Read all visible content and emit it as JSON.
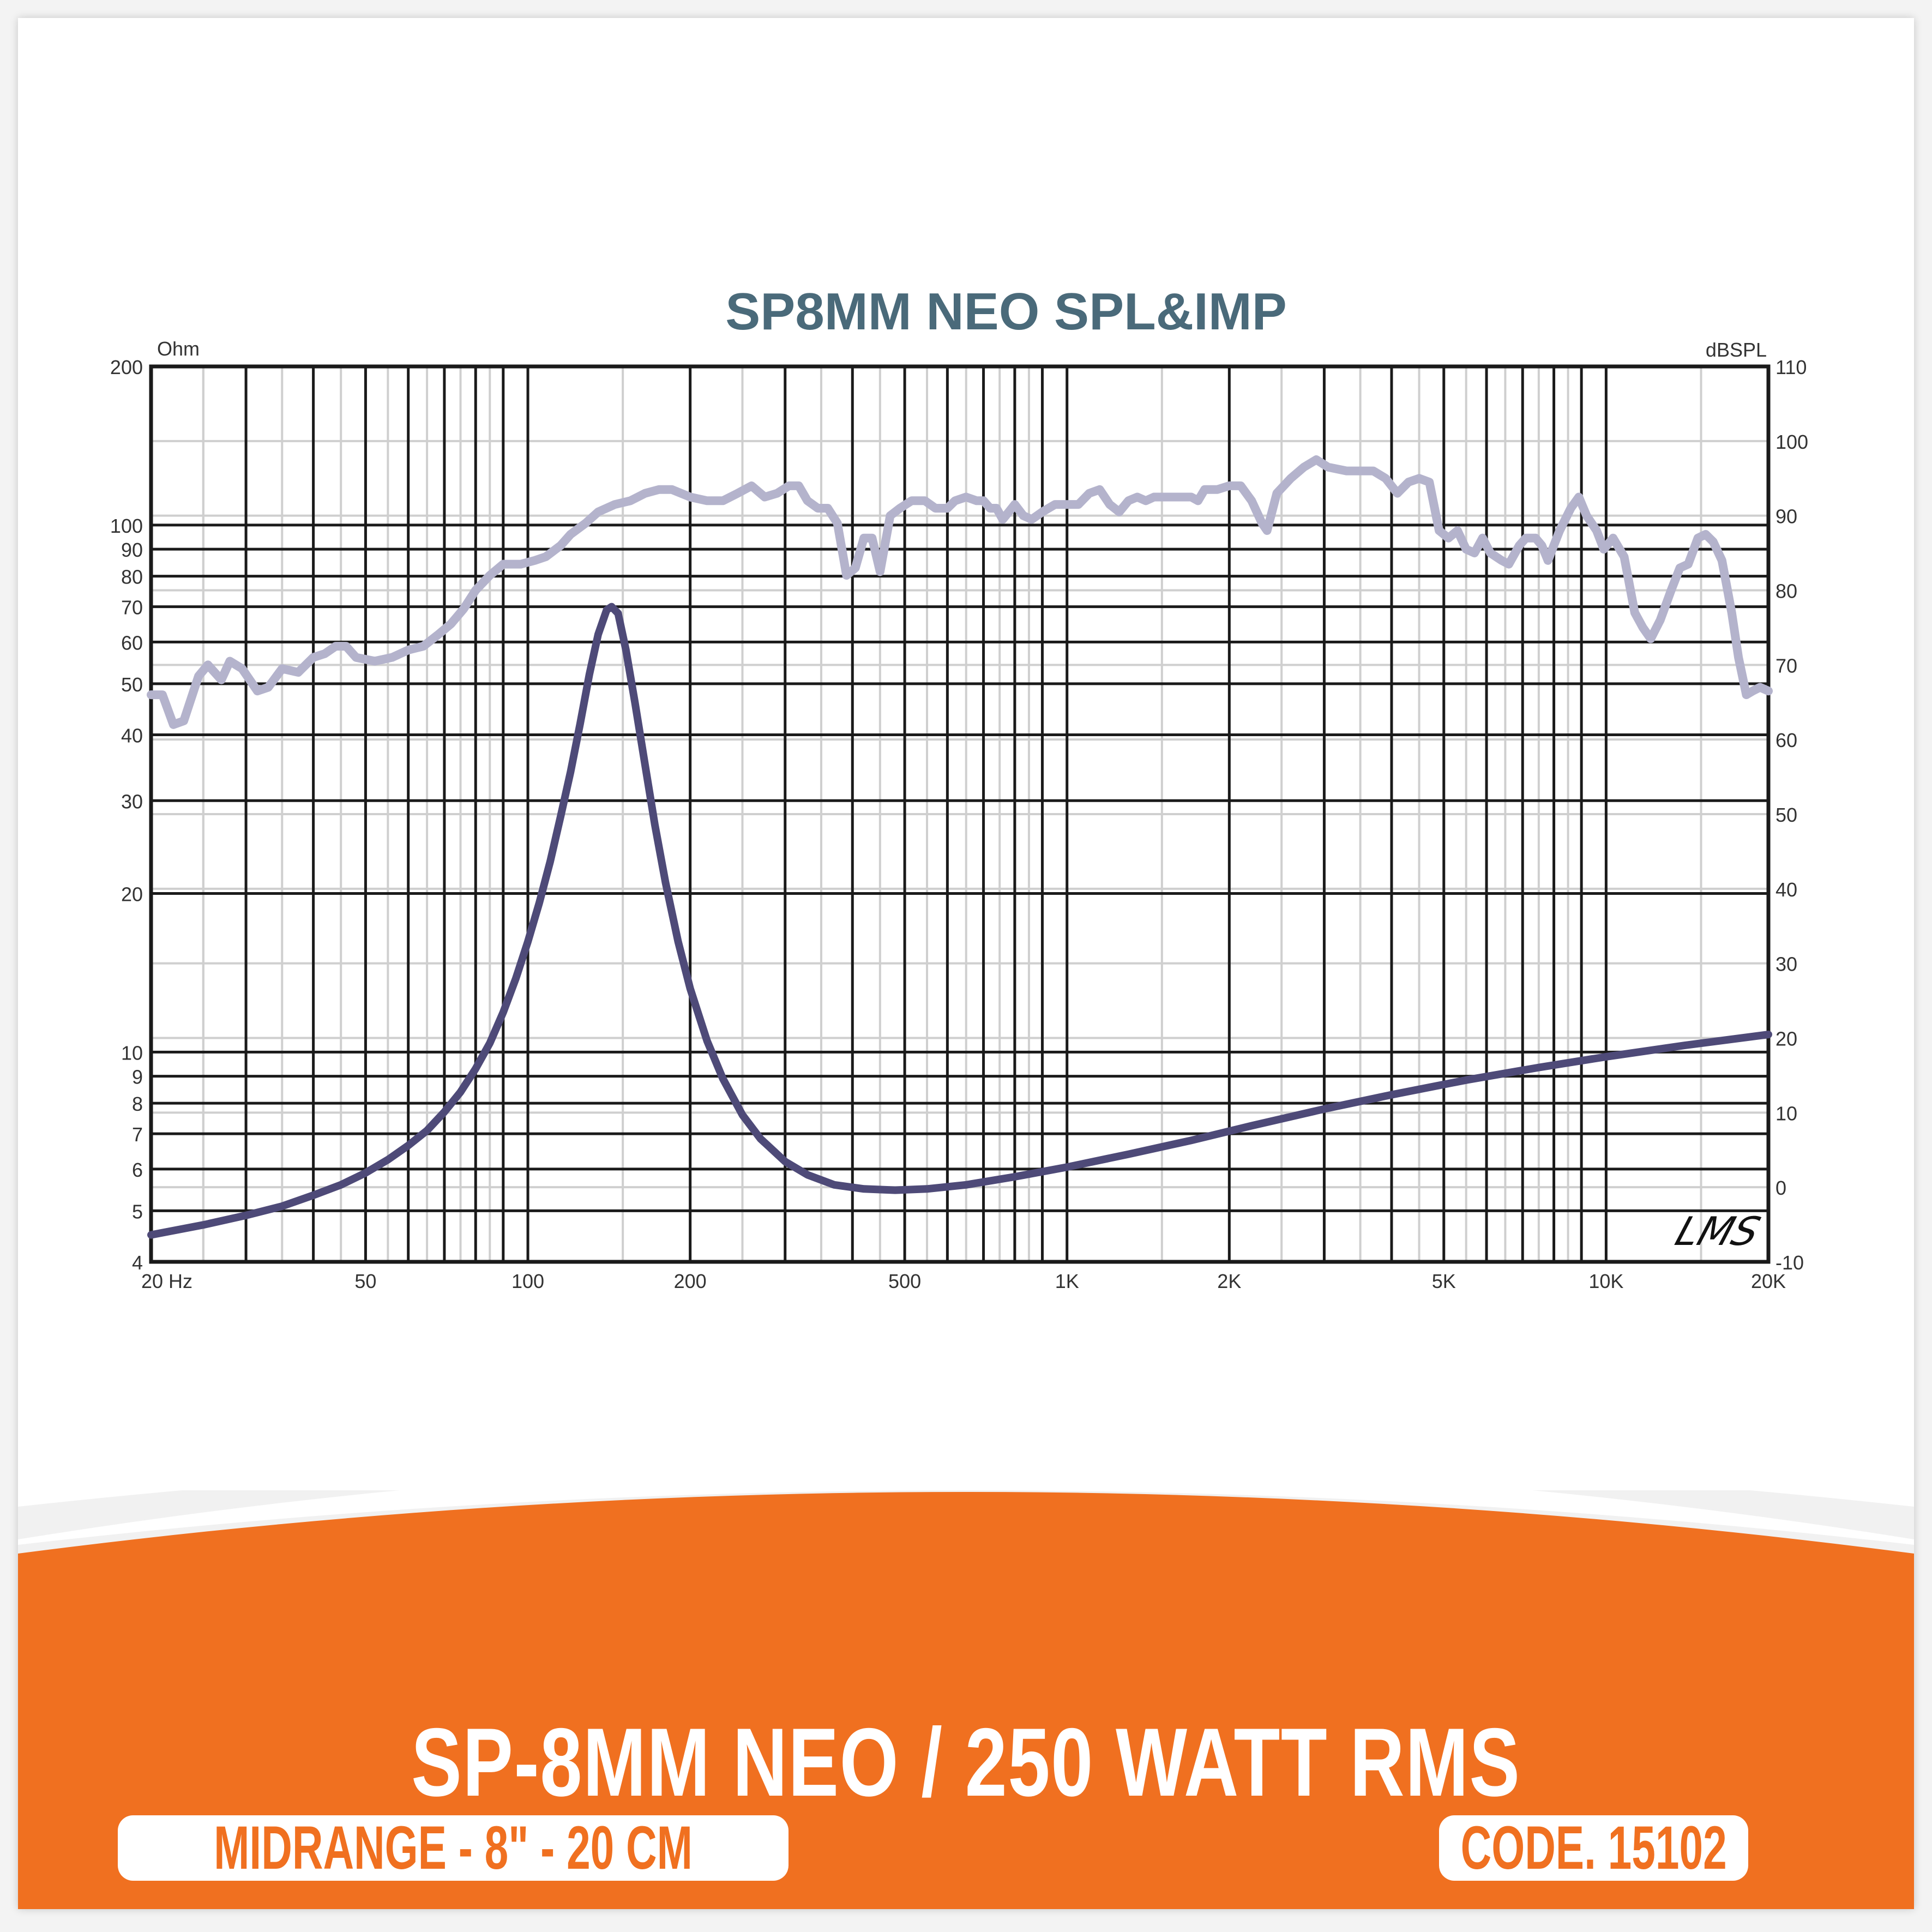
{
  "chart_data": {
    "type": "line",
    "title": "SP8MM NEO SPL&IMP",
    "xlabel": "Hz",
    "x_scale": "log",
    "xlim": [
      20,
      20000
    ],
    "x_ticks": [
      {
        "value": 20,
        "label": "20  Hz"
      },
      {
        "value": 50,
        "label": "50"
      },
      {
        "value": 100,
        "label": "100"
      },
      {
        "value": 200,
        "label": "200"
      },
      {
        "value": 500,
        "label": "500"
      },
      {
        "value": 1000,
        "label": "1K"
      },
      {
        "value": 2000,
        "label": "2K"
      },
      {
        "value": 5000,
        "label": "5K"
      },
      {
        "value": 10000,
        "label": "10K"
      },
      {
        "value": 20000,
        "label": "20K"
      }
    ],
    "y_left": {
      "label": "Ohm",
      "scale": "log",
      "lim": [
        4,
        200
      ],
      "ticks": [
        {
          "value": 200,
          "label": "200"
        },
        {
          "value": 100,
          "label": "100"
        },
        {
          "value": 90,
          "label": "90"
        },
        {
          "value": 80,
          "label": "80"
        },
        {
          "value": 70,
          "label": "70"
        },
        {
          "value": 60,
          "label": "60"
        },
        {
          "value": 50,
          "label": "50"
        },
        {
          "value": 40,
          "label": "40"
        },
        {
          "value": 30,
          "label": "30"
        },
        {
          "value": 20,
          "label": "20"
        },
        {
          "value": 10,
          "label": "10"
        },
        {
          "value": 9,
          "label": "9"
        },
        {
          "value": 8,
          "label": "8"
        },
        {
          "value": 7,
          "label": "7"
        },
        {
          "value": 6,
          "label": "6"
        },
        {
          "value": 5,
          "label": "5"
        },
        {
          "value": 4,
          "label": "4"
        }
      ]
    },
    "y_right": {
      "label": "dBSPL",
      "scale": "linear",
      "lim": [
        -10,
        110
      ],
      "ticks": [
        {
          "value": 110,
          "label": "110"
        },
        {
          "value": 100,
          "label": "100"
        },
        {
          "value": 90,
          "label": "90"
        },
        {
          "value": 80,
          "label": "80"
        },
        {
          "value": 70,
          "label": "70"
        },
        {
          "value": 60,
          "label": "60"
        },
        {
          "value": 50,
          "label": "50"
        },
        {
          "value": 40,
          "label": "40"
        },
        {
          "value": 30,
          "label": "30"
        },
        {
          "value": 20,
          "label": "20"
        },
        {
          "value": 10,
          "label": "10"
        },
        {
          "value": 0,
          "label": "0"
        },
        {
          "value": -10,
          "label": "-10"
        }
      ]
    },
    "grid": true,
    "legend": null,
    "annotation": "LMS",
    "series": [
      {
        "name": "SPL",
        "axis": "right",
        "unit": "dBSPL",
        "color": "#b4b3cc",
        "points": [
          [
            20,
            66
          ],
          [
            21,
            66
          ],
          [
            22,
            62
          ],
          [
            23,
            62.5
          ],
          [
            24.5,
            68.5
          ],
          [
            25.5,
            70
          ],
          [
            27,
            68
          ],
          [
            28,
            70.5
          ],
          [
            29.5,
            69.5
          ],
          [
            31.5,
            66.5
          ],
          [
            33,
            67
          ],
          [
            35,
            69.5
          ],
          [
            37.5,
            69
          ],
          [
            40,
            71
          ],
          [
            42,
            71.5
          ],
          [
            44,
            72.5
          ],
          [
            46,
            72.5
          ],
          [
            48,
            71
          ],
          [
            52,
            70.5
          ],
          [
            56,
            71
          ],
          [
            60,
            72
          ],
          [
            64,
            72.5
          ],
          [
            68,
            74
          ],
          [
            72,
            75.5
          ],
          [
            76,
            77.5
          ],
          [
            80,
            80
          ],
          [
            85,
            82
          ],
          [
            90,
            83.5
          ],
          [
            97,
            83.5
          ],
          [
            103,
            84
          ],
          [
            108,
            84.5
          ],
          [
            115,
            86
          ],
          [
            120,
            87.5
          ],
          [
            128,
            89
          ],
          [
            135,
            90.5
          ],
          [
            145,
            91.5
          ],
          [
            155,
            92
          ],
          [
            165,
            93
          ],
          [
            175,
            93.5
          ],
          [
            185,
            93.5
          ],
          [
            200,
            92.5
          ],
          [
            215,
            92
          ],
          [
            230,
            92
          ],
          [
            245,
            93
          ],
          [
            260,
            94
          ],
          [
            275,
            92.5
          ],
          [
            290,
            93
          ],
          [
            305,
            94
          ],
          [
            318,
            94
          ],
          [
            330,
            92
          ],
          [
            345,
            91
          ],
          [
            360,
            91
          ],
          [
            375,
            89
          ],
          [
            390,
            82
          ],
          [
            405,
            83
          ],
          [
            420,
            87
          ],
          [
            435,
            87
          ],
          [
            450,
            82.5
          ],
          [
            470,
            90
          ],
          [
            490,
            91
          ],
          [
            515,
            92
          ],
          [
            545,
            92
          ],
          [
            570,
            91
          ],
          [
            600,
            91
          ],
          [
            620,
            92
          ],
          [
            650,
            92.5
          ],
          [
            680,
            92
          ],
          [
            700,
            92
          ],
          [
            720,
            91
          ],
          [
            740,
            91
          ],
          [
            760,
            89.5
          ],
          [
            780,
            90.5
          ],
          [
            800,
            91.5
          ],
          [
            830,
            90
          ],
          [
            860,
            89.5
          ],
          [
            900,
            90.5
          ],
          [
            950,
            91.5
          ],
          [
            1000,
            91.5
          ],
          [
            1050,
            91.5
          ],
          [
            1100,
            93
          ],
          [
            1150,
            93.5
          ],
          [
            1200,
            91.5
          ],
          [
            1250,
            90.5
          ],
          [
            1300,
            92
          ],
          [
            1350,
            92.5
          ],
          [
            1400,
            92
          ],
          [
            1450,
            92.5
          ],
          [
            1550,
            92.5
          ],
          [
            1650,
            92.5
          ],
          [
            1700,
            92.5
          ],
          [
            1750,
            92
          ],
          [
            1800,
            93.5
          ],
          [
            1900,
            93.5
          ],
          [
            2000,
            94
          ],
          [
            2100,
            94
          ],
          [
            2200,
            92
          ],
          [
            2300,
            89
          ],
          [
            2350,
            88
          ],
          [
            2450,
            93
          ],
          [
            2600,
            95
          ],
          [
            2750,
            96.5
          ],
          [
            2900,
            97.5
          ],
          [
            3050,
            96.5
          ],
          [
            3300,
            96
          ],
          [
            3700,
            96
          ],
          [
            3900,
            95
          ],
          [
            4100,
            93
          ],
          [
            4300,
            94.5
          ],
          [
            4500,
            95
          ],
          [
            4700,
            94.5
          ],
          [
            4900,
            88
          ],
          [
            5100,
            87
          ],
          [
            5300,
            88
          ],
          [
            5500,
            85.5
          ],
          [
            5700,
            85
          ],
          [
            5900,
            87
          ],
          [
            6100,
            85
          ],
          [
            6400,
            84
          ],
          [
            6600,
            83.5
          ],
          [
            6900,
            86
          ],
          [
            7100,
            87
          ],
          [
            7400,
            87
          ],
          [
            7600,
            86
          ],
          [
            7800,
            84
          ],
          [
            8200,
            88
          ],
          [
            8600,
            91
          ],
          [
            8900,
            92.5
          ],
          [
            9200,
            90
          ],
          [
            9600,
            88
          ],
          [
            9900,
            85.5
          ],
          [
            10300,
            87
          ],
          [
            10800,
            84.5
          ],
          [
            11300,
            77
          ],
          [
            11700,
            75
          ],
          [
            12100,
            73.5
          ],
          [
            12600,
            76
          ],
          [
            13200,
            80
          ],
          [
            13700,
            83
          ],
          [
            14200,
            83.5
          ],
          [
            14800,
            87
          ],
          [
            15300,
            87.5
          ],
          [
            15800,
            86.5
          ],
          [
            16400,
            84
          ],
          [
            17100,
            77
          ],
          [
            17600,
            71
          ],
          [
            18200,
            66
          ],
          [
            18700,
            66.5
          ],
          [
            19300,
            67
          ],
          [
            20000,
            66.5
          ]
        ]
      },
      {
        "name": "Impedance",
        "axis": "left",
        "unit": "Ohm",
        "color": "#4e4a78",
        "fs_hz": 143,
        "peak_ohm": 70,
        "points": [
          [
            20,
            4.5
          ],
          [
            25,
            4.7
          ],
          [
            30,
            4.9
          ],
          [
            35,
            5.1
          ],
          [
            40,
            5.35
          ],
          [
            45,
            5.6
          ],
          [
            50,
            5.9
          ],
          [
            55,
            6.25
          ],
          [
            60,
            6.65
          ],
          [
            65,
            7.1
          ],
          [
            70,
            7.7
          ],
          [
            75,
            8.4
          ],
          [
            80,
            9.3
          ],
          [
            85,
            10.4
          ],
          [
            90,
            11.9
          ],
          [
            95,
            13.8
          ],
          [
            100,
            16.2
          ],
          [
            105,
            19.2
          ],
          [
            110,
            23
          ],
          [
            115,
            28
          ],
          [
            120,
            34
          ],
          [
            125,
            42
          ],
          [
            130,
            52
          ],
          [
            135,
            62
          ],
          [
            140,
            69
          ],
          [
            143,
            70
          ],
          [
            147,
            68
          ],
          [
            152,
            58
          ],
          [
            158,
            46
          ],
          [
            165,
            35
          ],
          [
            172,
            27
          ],
          [
            180,
            21
          ],
          [
            190,
            16.2
          ],
          [
            200,
            13.2
          ],
          [
            215,
            10.5
          ],
          [
            230,
            8.9
          ],
          [
            250,
            7.6
          ],
          [
            270,
            6.85
          ],
          [
            300,
            6.2
          ],
          [
            330,
            5.85
          ],
          [
            370,
            5.6
          ],
          [
            420,
            5.5
          ],
          [
            480,
            5.47
          ],
          [
            550,
            5.5
          ],
          [
            650,
            5.6
          ],
          [
            800,
            5.8
          ],
          [
            1000,
            6.05
          ],
          [
            1300,
            6.4
          ],
          [
            1700,
            6.8
          ],
          [
            2200,
            7.25
          ],
          [
            3000,
            7.8
          ],
          [
            4000,
            8.3
          ],
          [
            5500,
            8.85
          ],
          [
            7500,
            9.35
          ],
          [
            10000,
            9.8
          ],
          [
            14000,
            10.3
          ],
          [
            20000,
            10.8
          ]
        ]
      }
    ]
  },
  "footer": {
    "product_title": "SP-8MM NEO / 250 WATT RMS",
    "category_badge": "MIDRANGE - 8\" - 20 CM",
    "code_badge": "CODE. 15102"
  },
  "colors": {
    "accent_orange": "#f07020",
    "title_teal": "#4a6a7a",
    "spl_curve": "#b4b3cc",
    "impedance_curve": "#4e4a78",
    "grid_major": "#1a1a1a",
    "grid_minor": "#cfcfcf",
    "footer_arc": "#f1f1f1"
  }
}
